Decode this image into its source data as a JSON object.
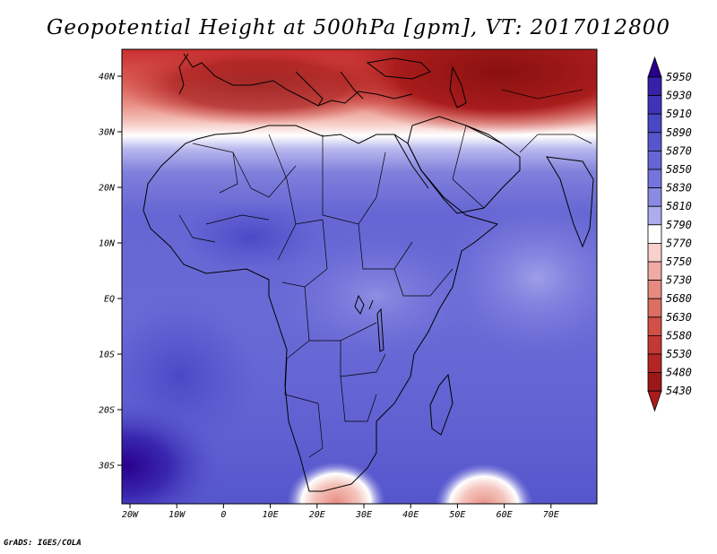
{
  "title": "Geopotential Height at 500hPa [gpm], VT: 2017012800",
  "lon_ticks": [
    "20W",
    "10W",
    "0",
    "10E",
    "20E",
    "30E",
    "40E",
    "50E",
    "60E",
    "70E"
  ],
  "lat_ticks": [
    "40N",
    "30N",
    "20N",
    "10N",
    "EQ",
    "10S",
    "20S",
    "30S"
  ],
  "colorbar": {
    "levels": [
      "5950",
      "5930",
      "5910",
      "5890",
      "5870",
      "5850",
      "5830",
      "5810",
      "5790",
      "5770",
      "5750",
      "5730",
      "5680",
      "5630",
      "5580",
      "5530",
      "5480",
      "5430"
    ],
    "colors": [
      "#28008c",
      "#3620a8",
      "#3f34b8",
      "#4848c4",
      "#5656cc",
      "#6565d4",
      "#7474dc",
      "#8a8ae2",
      "#acacee",
      "#ffffff",
      "#f8d0cc",
      "#f0aaa4",
      "#e68a80",
      "#dc6e64",
      "#d25048",
      "#c43834",
      "#b42626",
      "#9c1818",
      "#ab1c1c"
    ]
  },
  "footer": "GrADS: IGES/COLA"
}
